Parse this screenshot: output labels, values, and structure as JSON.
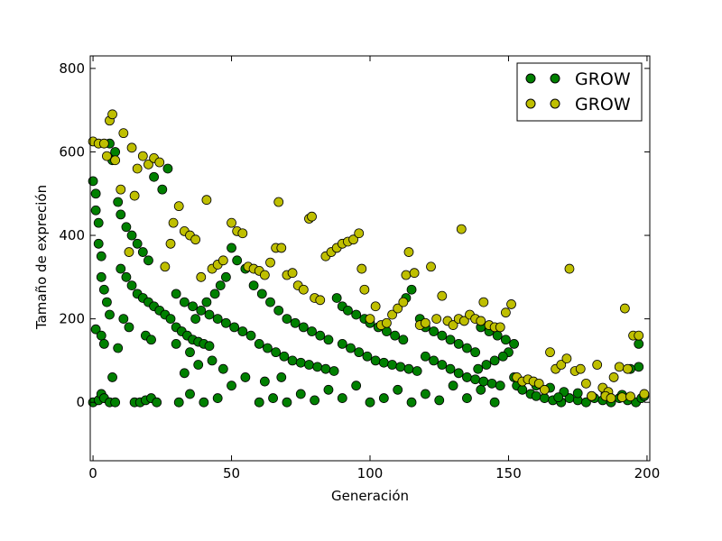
{
  "chart_data": {
    "type": "scatter",
    "title": "",
    "xlabel": "Generación",
    "ylabel": "Tamaño de expreción",
    "xlim": [
      -1,
      201
    ],
    "ylim": [
      -140,
      830
    ],
    "xticks": [
      0,
      50,
      100,
      150,
      200
    ],
    "yticks": [
      0,
      200,
      400,
      600,
      800
    ],
    "grid": false,
    "legend_position": "top-right",
    "series": [
      {
        "name": "GROW",
        "color": "#008000",
        "points": [
          [
            0,
            530
          ],
          [
            1,
            500
          ],
          [
            1,
            460
          ],
          [
            2,
            430
          ],
          [
            2,
            380
          ],
          [
            3,
            350
          ],
          [
            3,
            300
          ],
          [
            4,
            270
          ],
          [
            5,
            240
          ],
          [
            6,
            210
          ],
          [
            1,
            175
          ],
          [
            3,
            160
          ],
          [
            4,
            140
          ],
          [
            0,
            0
          ],
          [
            2,
            5
          ],
          [
            3,
            20
          ],
          [
            4,
            10
          ],
          [
            6,
            0
          ],
          [
            8,
            0
          ],
          [
            7,
            60
          ],
          [
            6,
            620
          ],
          [
            8,
            600
          ],
          [
            7,
            580
          ],
          [
            9,
            480
          ],
          [
            10,
            450
          ],
          [
            12,
            420
          ],
          [
            14,
            400
          ],
          [
            16,
            380
          ],
          [
            18,
            360
          ],
          [
            20,
            340
          ],
          [
            10,
            320
          ],
          [
            12,
            300
          ],
          [
            14,
            280
          ],
          [
            16,
            260
          ],
          [
            18,
            250
          ],
          [
            20,
            240
          ],
          [
            22,
            230
          ],
          [
            24,
            220
          ],
          [
            26,
            210
          ],
          [
            28,
            200
          ],
          [
            15,
            0
          ],
          [
            17,
            0
          ],
          [
            19,
            5
          ],
          [
            21,
            10
          ],
          [
            23,
            0
          ],
          [
            11,
            200
          ],
          [
            13,
            180
          ],
          [
            9,
            130
          ],
          [
            19,
            160
          ],
          [
            21,
            150
          ],
          [
            25,
            510
          ],
          [
            27,
            560
          ],
          [
            22,
            540
          ],
          [
            30,
            180
          ],
          [
            32,
            170
          ],
          [
            34,
            160
          ],
          [
            36,
            150
          ],
          [
            38,
            145
          ],
          [
            40,
            140
          ],
          [
            42,
            135
          ],
          [
            30,
            260
          ],
          [
            33,
            240
          ],
          [
            36,
            230
          ],
          [
            39,
            220
          ],
          [
            42,
            210
          ],
          [
            45,
            200
          ],
          [
            48,
            190
          ],
          [
            51,
            180
          ],
          [
            54,
            170
          ],
          [
            57,
            160
          ],
          [
            31,
            0
          ],
          [
            35,
            20
          ],
          [
            40,
            0
          ],
          [
            45,
            10
          ],
          [
            50,
            40
          ],
          [
            55,
            60
          ],
          [
            33,
            70
          ],
          [
            38,
            90
          ],
          [
            43,
            100
          ],
          [
            47,
            80
          ],
          [
            50,
            370
          ],
          [
            52,
            340
          ],
          [
            55,
            320
          ],
          [
            48,
            300
          ],
          [
            46,
            280
          ],
          [
            44,
            260
          ],
          [
            41,
            240
          ],
          [
            37,
            200
          ],
          [
            35,
            120
          ],
          [
            30,
            140
          ],
          [
            58,
            280
          ],
          [
            61,
            260
          ],
          [
            64,
            240
          ],
          [
            67,
            220
          ],
          [
            70,
            200
          ],
          [
            73,
            190
          ],
          [
            76,
            180
          ],
          [
            79,
            170
          ],
          [
            82,
            160
          ],
          [
            85,
            150
          ],
          [
            60,
            140
          ],
          [
            63,
            130
          ],
          [
            66,
            120
          ],
          [
            69,
            110
          ],
          [
            72,
            100
          ],
          [
            75,
            95
          ],
          [
            78,
            90
          ],
          [
            81,
            85
          ],
          [
            84,
            80
          ],
          [
            87,
            75
          ],
          [
            60,
            0
          ],
          [
            65,
            10
          ],
          [
            70,
            0
          ],
          [
            75,
            20
          ],
          [
            80,
            5
          ],
          [
            85,
            30
          ],
          [
            90,
            10
          ],
          [
            95,
            40
          ],
          [
            62,
            50
          ],
          [
            68,
            60
          ],
          [
            88,
            250
          ],
          [
            90,
            230
          ],
          [
            92,
            220
          ],
          [
            95,
            210
          ],
          [
            98,
            200
          ],
          [
            100,
            190
          ],
          [
            103,
            180
          ],
          [
            106,
            170
          ],
          [
            109,
            160
          ],
          [
            112,
            150
          ],
          [
            90,
            140
          ],
          [
            93,
            130
          ],
          [
            96,
            120
          ],
          [
            99,
            110
          ],
          [
            102,
            100
          ],
          [
            105,
            95
          ],
          [
            108,
            90
          ],
          [
            111,
            85
          ],
          [
            114,
            80
          ],
          [
            117,
            75
          ],
          [
            100,
            0
          ],
          [
            105,
            10
          ],
          [
            110,
            30
          ],
          [
            115,
            0
          ],
          [
            120,
            20
          ],
          [
            125,
            5
          ],
          [
            130,
            40
          ],
          [
            135,
            10
          ],
          [
            140,
            30
          ],
          [
            145,
            0
          ],
          [
            115,
            270
          ],
          [
            113,
            250
          ],
          [
            118,
            200
          ],
          [
            120,
            180
          ],
          [
            123,
            170
          ],
          [
            126,
            160
          ],
          [
            129,
            150
          ],
          [
            132,
            140
          ],
          [
            135,
            130
          ],
          [
            138,
            120
          ],
          [
            120,
            110
          ],
          [
            123,
            100
          ],
          [
            126,
            90
          ],
          [
            129,
            80
          ],
          [
            132,
            70
          ],
          [
            135,
            60
          ],
          [
            138,
            55
          ],
          [
            141,
            50
          ],
          [
            144,
            45
          ],
          [
            147,
            40
          ],
          [
            140,
            180
          ],
          [
            143,
            170
          ],
          [
            146,
            160
          ],
          [
            149,
            150
          ],
          [
            152,
            140
          ],
          [
            150,
            120
          ],
          [
            148,
            110
          ],
          [
            145,
            100
          ],
          [
            142,
            90
          ],
          [
            139,
            80
          ],
          [
            152,
            60
          ],
          [
            153,
            40
          ],
          [
            155,
            30
          ],
          [
            158,
            20
          ],
          [
            160,
            15
          ],
          [
            163,
            10
          ],
          [
            166,
            5
          ],
          [
            169,
            0
          ],
          [
            172,
            10
          ],
          [
            175,
            5
          ],
          [
            178,
            0
          ],
          [
            181,
            10
          ],
          [
            184,
            5
          ],
          [
            187,
            0
          ],
          [
            190,
            10
          ],
          [
            193,
            5
          ],
          [
            196,
            0
          ],
          [
            198,
            10
          ],
          [
            199,
            15
          ],
          [
            197,
            140
          ],
          [
            197,
            85
          ],
          [
            194,
            80
          ],
          [
            170,
            25
          ],
          [
            165,
            35
          ],
          [
            160,
            40
          ],
          [
            180,
            15
          ],
          [
            185,
            20
          ],
          [
            191,
            18
          ],
          [
            175,
            22
          ],
          [
            168,
            12
          ]
        ]
      },
      {
        "name": "GROW",
        "color": "#bfbf00",
        "points": [
          [
            0,
            625
          ],
          [
            2,
            620
          ],
          [
            4,
            620
          ],
          [
            6,
            675
          ],
          [
            7,
            690
          ],
          [
            5,
            590
          ],
          [
            8,
            580
          ],
          [
            10,
            510
          ],
          [
            11,
            645
          ],
          [
            14,
            610
          ],
          [
            16,
            560
          ],
          [
            18,
            590
          ],
          [
            20,
            570
          ],
          [
            22,
            585
          ],
          [
            24,
            575
          ],
          [
            15,
            495
          ],
          [
            13,
            360
          ],
          [
            26,
            325
          ],
          [
            28,
            380
          ],
          [
            29,
            430
          ],
          [
            31,
            470
          ],
          [
            33,
            410
          ],
          [
            35,
            400
          ],
          [
            37,
            390
          ],
          [
            39,
            300
          ],
          [
            41,
            485
          ],
          [
            43,
            320
          ],
          [
            45,
            330
          ],
          [
            47,
            340
          ],
          [
            50,
            430
          ],
          [
            52,
            410
          ],
          [
            54,
            405
          ],
          [
            56,
            325
          ],
          [
            58,
            320
          ],
          [
            60,
            315
          ],
          [
            62,
            305
          ],
          [
            64,
            335
          ],
          [
            66,
            370
          ],
          [
            67,
            480
          ],
          [
            68,
            370
          ],
          [
            70,
            305
          ],
          [
            72,
            310
          ],
          [
            74,
            280
          ],
          [
            76,
            270
          ],
          [
            78,
            440
          ],
          [
            79,
            445
          ],
          [
            80,
            250
          ],
          [
            82,
            245
          ],
          [
            84,
            350
          ],
          [
            86,
            360
          ],
          [
            88,
            370
          ],
          [
            90,
            380
          ],
          [
            92,
            385
          ],
          [
            94,
            390
          ],
          [
            96,
            405
          ],
          [
            97,
            320
          ],
          [
            98,
            270
          ],
          [
            100,
            200
          ],
          [
            102,
            230
          ],
          [
            104,
            185
          ],
          [
            106,
            190
          ],
          [
            108,
            210
          ],
          [
            110,
            225
          ],
          [
            112,
            240
          ],
          [
            113,
            305
          ],
          [
            114,
            360
          ],
          [
            116,
            310
          ],
          [
            118,
            185
          ],
          [
            120,
            190
          ],
          [
            122,
            325
          ],
          [
            124,
            200
          ],
          [
            126,
            255
          ],
          [
            128,
            195
          ],
          [
            130,
            185
          ],
          [
            132,
            200
          ],
          [
            133,
            415
          ],
          [
            134,
            195
          ],
          [
            136,
            210
          ],
          [
            138,
            200
          ],
          [
            140,
            195
          ],
          [
            141,
            240
          ],
          [
            143,
            185
          ],
          [
            145,
            180
          ],
          [
            147,
            180
          ],
          [
            149,
            215
          ],
          [
            151,
            235
          ],
          [
            153,
            60
          ],
          [
            155,
            50
          ],
          [
            157,
            55
          ],
          [
            159,
            50
          ],
          [
            161,
            45
          ],
          [
            163,
            30
          ],
          [
            165,
            120
          ],
          [
            167,
            80
          ],
          [
            169,
            90
          ],
          [
            171,
            105
          ],
          [
            172,
            320
          ],
          [
            174,
            75
          ],
          [
            176,
            80
          ],
          [
            178,
            45
          ],
          [
            180,
            15
          ],
          [
            182,
            90
          ],
          [
            184,
            35
          ],
          [
            186,
            25
          ],
          [
            188,
            60
          ],
          [
            190,
            85
          ],
          [
            192,
            225
          ],
          [
            193,
            80
          ],
          [
            195,
            160
          ],
          [
            197,
            160
          ],
          [
            199,
            20
          ],
          [
            185,
            15
          ],
          [
            187,
            10
          ],
          [
            191,
            12
          ],
          [
            194,
            14
          ]
        ]
      }
    ]
  }
}
